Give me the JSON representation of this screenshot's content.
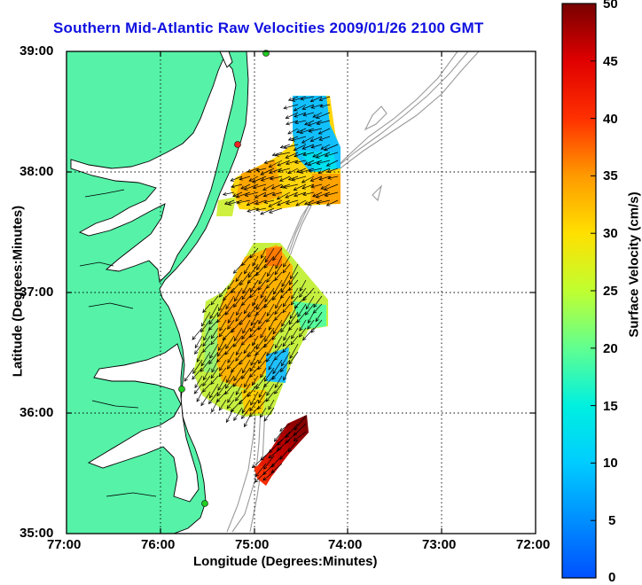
{
  "title": "Southern Mid-Atlantic Raw Velocities 2009/01/26 2100 GMT",
  "xlabel": "Longitude (Degrees:Minutes)",
  "ylabel": "Latitude (Degrees:Minutes)",
  "colorbar_label": "Surface Velocity (cm/s)",
  "x_ticks": [
    "77:00",
    "76:00",
    "75:00",
    "74:00",
    "73:00",
    "72:00"
  ],
  "y_ticks": [
    "39:00",
    "38:00",
    "37:00",
    "36:00",
    "35:00"
  ],
  "colorbar_ticks": [
    "0",
    "5",
    "10",
    "15",
    "20",
    "25",
    "30",
    "35",
    "40",
    "45",
    "50"
  ],
  "colors": {
    "land": "#55f2a8",
    "coast": "#000000",
    "bathymetry": "#9a9a9a",
    "title": "#1010e0",
    "stations": "#22cc22",
    "station_red": "#ee2222"
  },
  "map": {
    "lon_range": [
      -77,
      -72
    ],
    "lat_range": [
      35,
      39
    ],
    "velocity_range_cm_s": [
      0,
      50
    ]
  }
}
